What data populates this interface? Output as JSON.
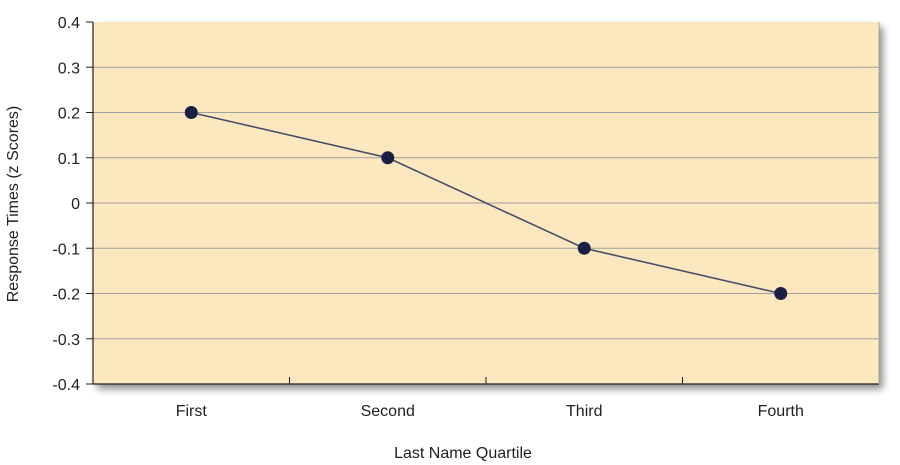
{
  "chart_data": {
    "type": "line",
    "categories": [
      "First",
      "Second",
      "Third",
      "Fourth"
    ],
    "series": [
      {
        "values": [
          0.2,
          0.1,
          -0.1,
          -0.2
        ],
        "color": "#1c1f45"
      }
    ],
    "xlabel": "Last Name Quartile",
    "ylabel": "Response Times (z Scores)",
    "ylim": [
      -0.4,
      0.4
    ],
    "yticks": [
      "0.4",
      "0.3",
      "0.2",
      "0.1",
      "0",
      "-0.1",
      "-0.2",
      "-0.3",
      "-0.4"
    ],
    "grid": true,
    "colors": {
      "plot_background": "#fbe8bf",
      "gridline": "#a0a0a0",
      "line": "#4a4d6a",
      "marker": "#1c1f45"
    }
  }
}
